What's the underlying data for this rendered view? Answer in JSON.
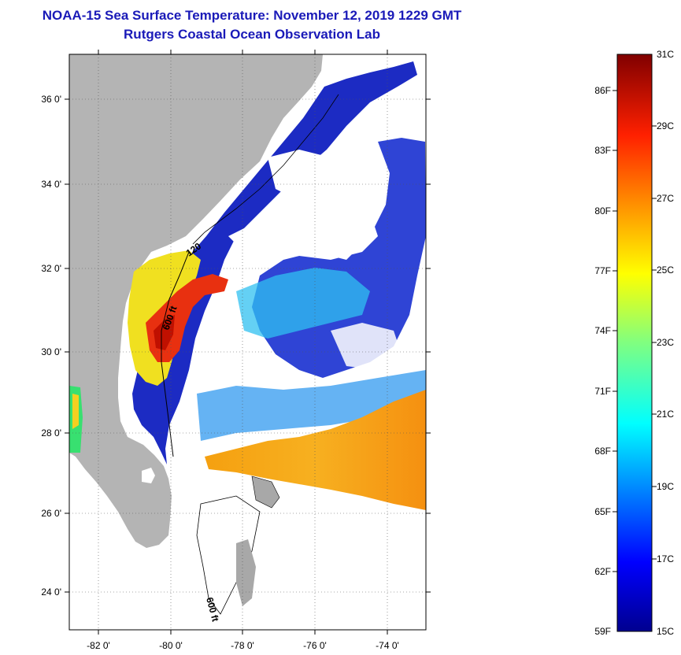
{
  "header": {
    "title": "NOAA-15 Sea Surface Temperature:  November 12, 2019 1229 GMT",
    "subtitle": "Rutgers Coastal Ocean Observation Lab"
  },
  "map": {
    "lat_ticks": [
      "36 0'",
      "34 0'",
      "32 0'",
      "30 0'",
      "28 0'",
      "26 0'",
      "24 0'"
    ],
    "lon_ticks": [
      "-82 0'",
      "-80 0'",
      "-78 0'",
      "-76 0'",
      "-74 0'"
    ],
    "isobath_labels": [
      "600 ft",
      "600 ft",
      "120"
    ]
  },
  "colorbar": {
    "fahrenheit": [
      "86F",
      "83F",
      "80F",
      "77F",
      "74F",
      "71F",
      "68F",
      "65F",
      "62F",
      "59F"
    ],
    "celsius": [
      "31C",
      "29C",
      "27C",
      "25C",
      "23C",
      "21C",
      "19C",
      "17C",
      "15C"
    ]
  },
  "colors": {
    "title": "#1a1ab8",
    "land": "#b4b4b4",
    "cold": "#0a0a9c",
    "warm": "#f59a10",
    "hot": "#7a0000"
  }
}
